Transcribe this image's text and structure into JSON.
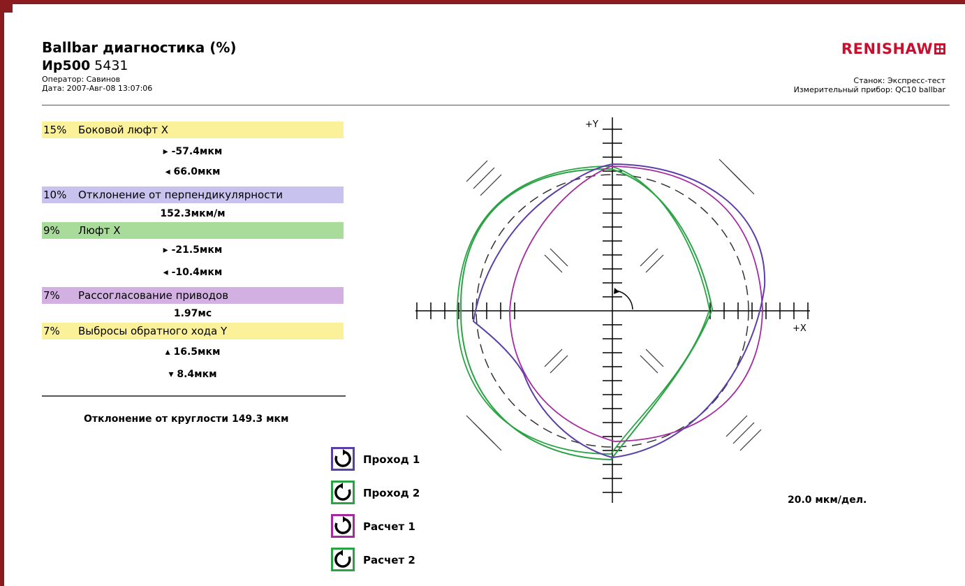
{
  "header": {
    "title": "Ballbar диагностика (%)",
    "subtitle_bold": "Ир500",
    "subtitle_num": "5431",
    "operator": "Оператор: Савинов",
    "date": "Дата: 2007-Авг-08 13:07:06",
    "brand": "RENISHAW",
    "machine": "Станок: Экспресс-тест",
    "instrument": "Измерительный прибор: QC10 ballbar"
  },
  "diagnostics": [
    {
      "pct": "15%",
      "label": "Боковой люфт X",
      "color": "#fbf19a",
      "values": [
        "▸ -57.4мкм",
        "◂ 66.0мкм"
      ]
    },
    {
      "pct": "10%",
      "label": "Отклонение от перпендикулярности",
      "color": "#c7c3ee",
      "values": [
        "152.3мкм/м"
      ]
    },
    {
      "pct": "9%",
      "label": "Люфт X",
      "color": "#a9dc9a",
      "values": [
        "▸ -21.5мкм",
        "◂ -10.4мкм"
      ]
    },
    {
      "pct": "7%",
      "label": "Рассогласование приводов",
      "color": "#d2b0e2",
      "values": [
        "1.97мс"
      ]
    },
    {
      "pct": "7%",
      "label": "Выбросы обратного хода Y",
      "color": "#fbf19a",
      "values": [
        "▴ 16.5мкм",
        "▾ 8.4мкм"
      ]
    }
  ],
  "circularity": "Отклонение от круглости  149.3 мкм",
  "legend": [
    {
      "label": "Проход 1",
      "color": "#5b3fa8",
      "icon": "clockwise-arrow-icon"
    },
    {
      "label": "Проход 2",
      "color": "#2aa344",
      "icon": "counterclockwise-arrow-icon"
    },
    {
      "label": "Расчет 1",
      "color": "#a52aa0",
      "icon": "clockwise-arrow-icon"
    },
    {
      "label": "Расчет 2",
      "color": "#2aa344",
      "icon": "counterclockwise-arrow-icon"
    }
  ],
  "plot": {
    "y_label": "+Y",
    "x_label": "+X",
    "scale": "20.0 мкм/дел.",
    "colors": {
      "run1": "#5b3fa8",
      "run2": "#2aa344",
      "calc1": "#a52aa0",
      "calc2": "#2aa344"
    }
  }
}
